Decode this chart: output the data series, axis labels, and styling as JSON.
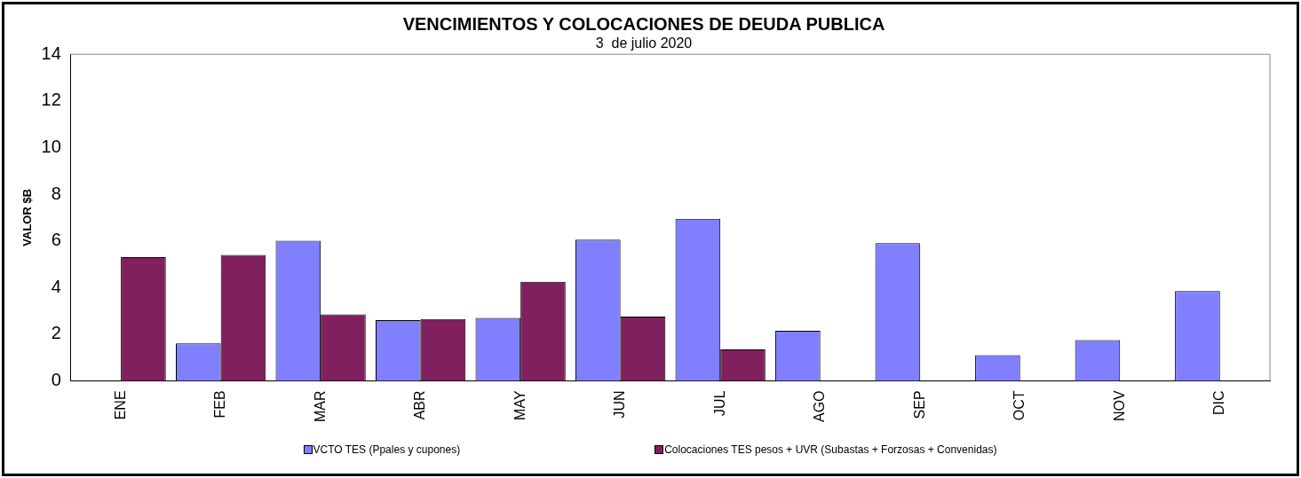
{
  "chart_data": {
    "type": "bar",
    "title": "VENCIMIENTOS Y COLOCACIONES DE DEUDA PUBLICA",
    "subtitle": "3  de julio 2020",
    "ylabel": "VALOR $B",
    "categories": [
      "ENE",
      "FEB",
      "MAR",
      "ABR",
      "MAY",
      "JUN",
      "JUL",
      "AGO",
      "SEP",
      "OCT",
      "NOV",
      "DIC"
    ],
    "series": [
      {
        "name": "VCTO TES (Ppales y cupones)",
        "color": "#8080ff",
        "values": [
          null,
          1.6,
          6.0,
          2.6,
          2.7,
          6.05,
          6.95,
          2.15,
          5.9,
          1.1,
          1.75,
          3.85
        ]
      },
      {
        "name": "Colocaciones TES pesos + UVR (Subastas + Forzosas + Convenidas)",
        "color": "#80205f",
        "values": [
          5.3,
          5.4,
          2.85,
          2.65,
          4.25,
          2.75,
          1.35,
          null,
          null,
          null,
          null,
          null
        ]
      }
    ],
    "ylim": [
      0,
      14
    ],
    "yticks": [
      0,
      2,
      4,
      6,
      8,
      10,
      12,
      14
    ],
    "grid": false,
    "legend": "bottom"
  }
}
